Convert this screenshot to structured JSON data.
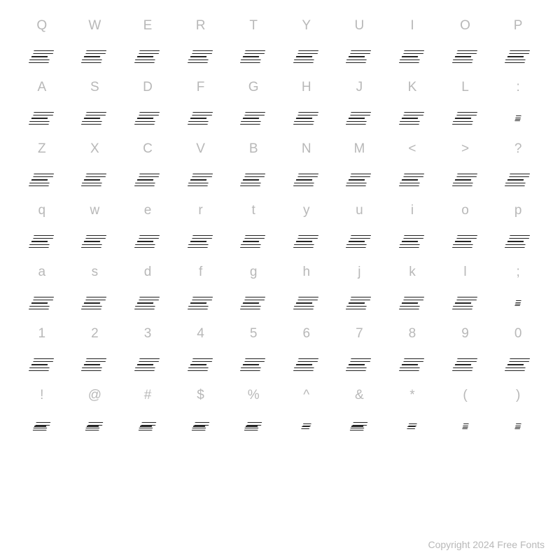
{
  "chart": {
    "background_color": "#ffffff",
    "label_color": "#b8b8b8",
    "label_fontsize": 19,
    "glyph_stroke_color": "#222222",
    "glyph_fill_color": "#ffffff",
    "glyph_skew_deg": -14,
    "rows": [
      {
        "labels": [
          "Q",
          "W",
          "E",
          "R",
          "T",
          "Y",
          "U",
          "I",
          "O",
          "P"
        ],
        "glyph_size": "lg"
      },
      {
        "labels": [
          "A",
          "S",
          "D",
          "F",
          "G",
          "H",
          "J",
          "K",
          "L",
          ":"
        ],
        "glyph_size": "lg"
      },
      {
        "labels": [
          "Z",
          "X",
          "C",
          "V",
          "B",
          "N",
          "M",
          "<",
          ">",
          "?"
        ],
        "glyph_size": "lg"
      },
      {
        "labels": [
          "q",
          "w",
          "e",
          "r",
          "t",
          "y",
          "u",
          "i",
          "o",
          "p"
        ],
        "glyph_size": "lg"
      },
      {
        "labels": [
          "a",
          "s",
          "d",
          "f",
          "g",
          "h",
          "j",
          "k",
          "l",
          ";"
        ],
        "glyph_size": "lg"
      },
      {
        "labels": [
          "1",
          "2",
          "3",
          "4",
          "5",
          "6",
          "7",
          "8",
          "9",
          "0"
        ],
        "glyph_size": "lg"
      },
      {
        "labels": [
          "!",
          "@",
          "#",
          "$",
          "%",
          "^",
          "&",
          "*",
          "(",
          ")"
        ],
        "glyph_size": "sm"
      }
    ],
    "special_glyph_sizes": {
      "6_5": "xs",
      "6_7": "xs",
      "6_8": "tiny",
      "6_9": "tiny",
      "1_9": "tiny",
      "4_9": "tiny"
    }
  },
  "copyright": "Copyright 2024 Free Fonts"
}
